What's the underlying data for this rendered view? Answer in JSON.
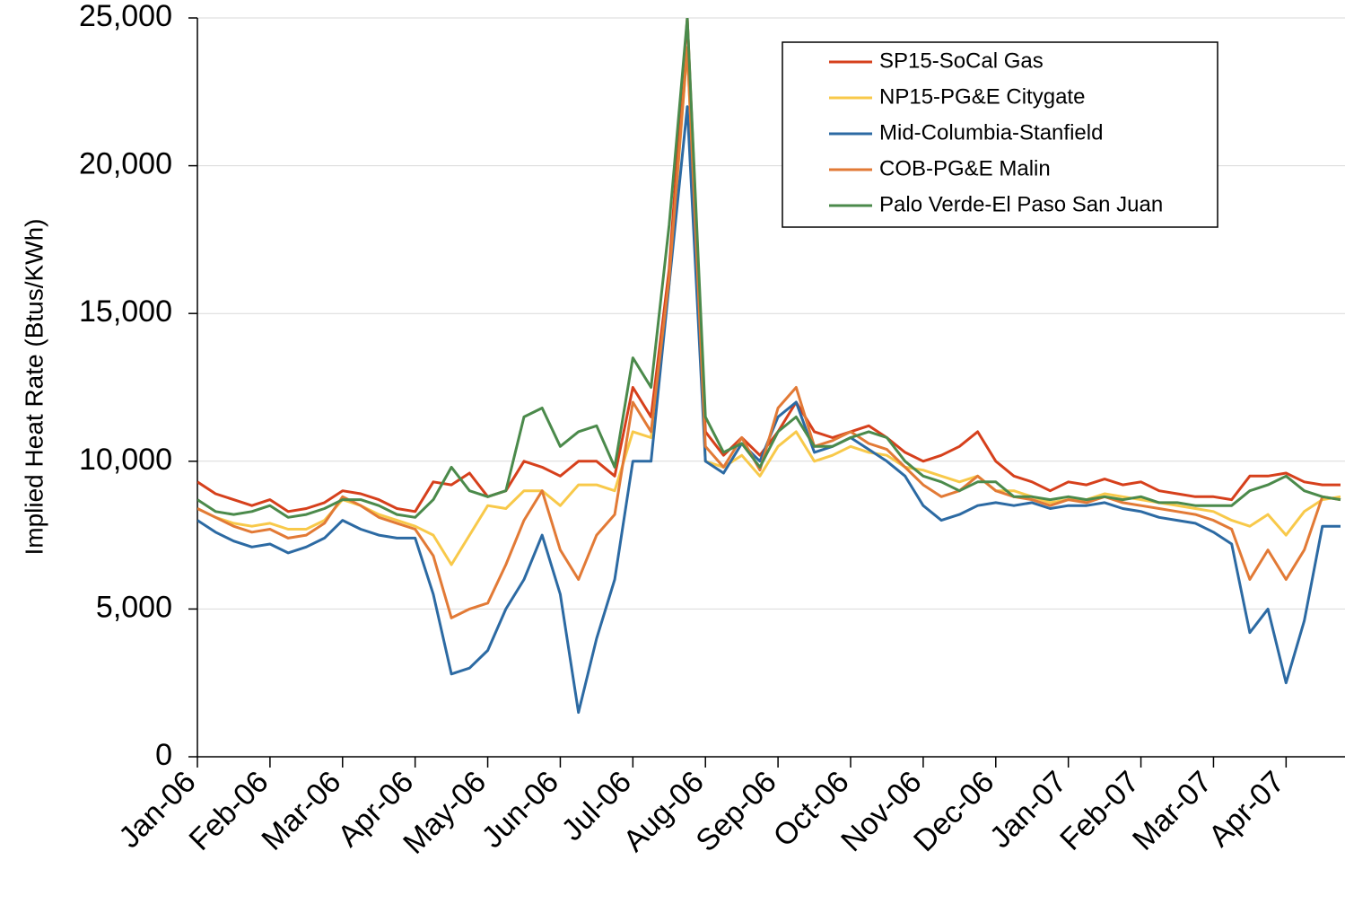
{
  "chart_data": {
    "type": "line",
    "y_label": "Implied Heat Rate (Btus/KWh)",
    "categories": [
      "Jan-06",
      null,
      null,
      null,
      "Feb-06",
      null,
      null,
      null,
      "Mar-06",
      null,
      null,
      null,
      "Apr-06",
      null,
      null,
      null,
      "May-06",
      null,
      null,
      null,
      "Jun-06",
      null,
      null,
      null,
      "Jul-06",
      null,
      null,
      null,
      "Aug-06",
      null,
      null,
      null,
      "Sep-06",
      null,
      null,
      null,
      "Oct-06",
      null,
      null,
      null,
      "Nov-06",
      null,
      null,
      null,
      "Dec-06",
      null,
      null,
      null,
      "Jan-07",
      null,
      null,
      null,
      "Feb-07",
      null,
      null,
      null,
      "Mar-07",
      null,
      null,
      null,
      "Apr-07",
      null,
      null,
      null
    ],
    "ylim": [
      0,
      25000
    ],
    "yticks": [
      0,
      {
        "value": 5000,
        "label": "5,000"
      },
      {
        "value": 10000,
        "label": "10,000"
      },
      {
        "value": 15000,
        "label": "15,000"
      },
      {
        "value": 20000,
        "label": "20,000"
      },
      {
        "value": 25000,
        "label": "25,000"
      }
    ],
    "grid": true,
    "legend": "top-right",
    "series": [
      {
        "name": "SP15-SoCal Gas",
        "color": "#d6401c",
        "values": [
          9300,
          8900,
          8700,
          8500,
          8700,
          8300,
          8400,
          8600,
          9000,
          8900,
          8700,
          8400,
          8300,
          9300,
          9200,
          9600,
          8800,
          9000,
          10000,
          9800,
          9500,
          10000,
          10000,
          9500,
          12500,
          11500,
          16500,
          25000,
          11000,
          10200,
          10800,
          10200,
          11000,
          12000,
          11000,
          10800,
          11000,
          11200,
          10800,
          10300,
          10000,
          10200,
          10500,
          11000,
          10000,
          9500,
          9300,
          9000,
          9300,
          9200,
          9400,
          9200,
          9300,
          9000,
          8900,
          8800,
          8800,
          8700,
          9500,
          9500,
          9600,
          9300,
          9200,
          9200
        ]
      },
      {
        "name": "NP15-PG&E Citygate",
        "color": "#f8c94a",
        "values": [
          8400,
          8100,
          7900,
          7800,
          7900,
          7700,
          7700,
          8000,
          8700,
          8500,
          8200,
          8000,
          7800,
          7500,
          6500,
          7500,
          8500,
          8400,
          9000,
          9000,
          8500,
          9200,
          9200,
          9000,
          11000,
          10800,
          16000,
          24000,
          10000,
          9800,
          10200,
          9500,
          10500,
          11000,
          10000,
          10200,
          10500,
          10300,
          10200,
          9800,
          9700,
          9500,
          9300,
          9500,
          9000,
          9000,
          8800,
          8600,
          8700,
          8700,
          8900,
          8800,
          8700,
          8600,
          8500,
          8400,
          8300,
          8000,
          7800,
          8200,
          7500,
          8300,
          8700,
          8800
        ]
      },
      {
        "name": "Mid-Columbia-Stanfield",
        "color": "#2c6aa3",
        "values": [
          8000,
          7600,
          7300,
          7100,
          7200,
          6900,
          7100,
          7400,
          8000,
          7700,
          7500,
          7400,
          7400,
          5500,
          2800,
          3000,
          3600,
          5000,
          6000,
          7500,
          5500,
          1500,
          4000,
          6000,
          10000,
          10000,
          16000,
          22000,
          10000,
          9600,
          10600,
          10000,
          11500,
          12000,
          10300,
          10500,
          10800,
          10400,
          10000,
          9500,
          8500,
          8000,
          8200,
          8500,
          8600,
          8500,
          8600,
          8400,
          8500,
          8500,
          8600,
          8400,
          8300,
          8100,
          8000,
          7900,
          7600,
          7200,
          4200,
          5000,
          2500,
          4600,
          7800,
          7800
        ]
      },
      {
        "name": "COB-PG&E Malin",
        "color": "#e27a36",
        "values": [
          8400,
          8100,
          7800,
          7600,
          7700,
          7400,
          7500,
          7900,
          8800,
          8500,
          8100,
          7900,
          7700,
          6800,
          4700,
          5000,
          5200,
          6500,
          8000,
          9000,
          7000,
          6000,
          7500,
          8200,
          12000,
          11000,
          16200,
          24000,
          10500,
          9800,
          10800,
          9700,
          11800,
          12500,
          10500,
          10700,
          11000,
          10600,
          10400,
          9800,
          9200,
          8800,
          9000,
          9500,
          9000,
          8800,
          8700,
          8500,
          8700,
          8600,
          8800,
          8600,
          8500,
          8400,
          8300,
          8200,
          8000,
          7700,
          6000,
          7000,
          6000,
          7000,
          8800,
          8700
        ]
      },
      {
        "name": "Palo Verde-El Paso San Juan",
        "color": "#4b8a4b",
        "values": [
          8700,
          8300,
          8200,
          8300,
          8500,
          8100,
          8200,
          8400,
          8700,
          8700,
          8500,
          8200,
          8100,
          8700,
          9800,
          9000,
          8800,
          9000,
          11500,
          11800,
          10500,
          11000,
          11200,
          9800,
          13500,
          12500,
          18000,
          25000,
          11500,
          10300,
          10600,
          9800,
          11000,
          11500,
          10500,
          10500,
          10800,
          11000,
          10800,
          10000,
          9500,
          9300,
          9000,
          9300,
          9300,
          8800,
          8800,
          8700,
          8800,
          8700,
          8800,
          8700,
          8800,
          8600,
          8600,
          8500,
          8500,
          8500,
          9000,
          9200,
          9500,
          9000,
          8800,
          8700
        ]
      }
    ]
  }
}
